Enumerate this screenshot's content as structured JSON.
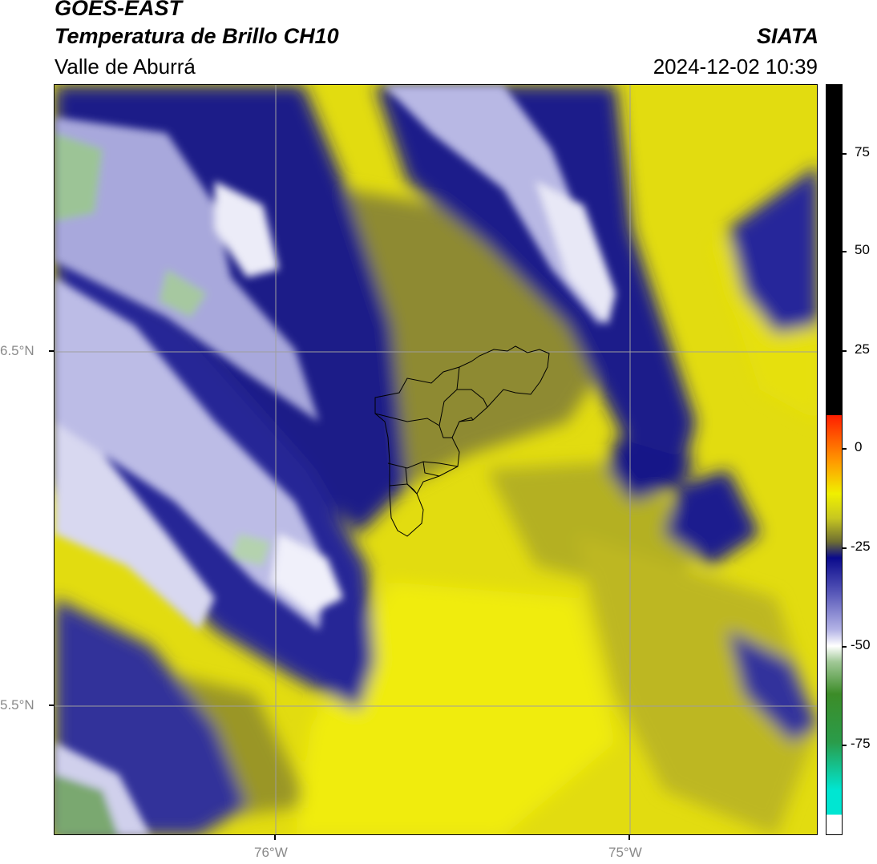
{
  "header": {
    "satellite": "GOES-EAST",
    "product": "Temperatura de Brillo CH10",
    "region": "Valle de Aburrá",
    "agency": "SIATA",
    "datetime": "2024-12-02 10:39"
  },
  "map": {
    "lat_labels": [
      "6.5°N",
      "5.5°N"
    ],
    "lon_labels": [
      "76°W",
      "75°W"
    ],
    "gridline_color": "#9e9e9e",
    "boundary_color": "#000000"
  },
  "colorbar": {
    "tick_labels": [
      "75",
      "50",
      "25",
      "0",
      "-25",
      "-50",
      "-75"
    ],
    "colors": {
      "black_range": "#000000",
      "red": "#ff1e00",
      "orange": "#ff8c00",
      "yellow": "#f0f000",
      "olive": "#6e6e32",
      "navy": "#0a0a8c",
      "lavender": "#b4b4e6",
      "white": "#ffffff",
      "green": "#3c8c28",
      "cyan": "#00e6d2"
    }
  }
}
